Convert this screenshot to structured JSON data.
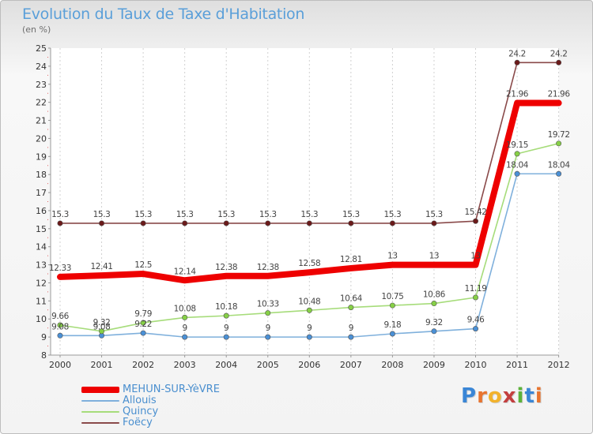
{
  "title": "Evolution du Taux de Taxe d'Habitation",
  "subtitle": "(en %)",
  "logo": {
    "text": "Proxiti",
    "letters": [
      "P",
      "r",
      "o",
      "x",
      "i",
      "t",
      "i"
    ],
    "colors": [
      "#3a86d6",
      "#e8742f",
      "#f2b22c",
      "#c33f3f",
      "#5cb23a",
      "#3a86d6",
      "#e8742f"
    ]
  },
  "chart_data": {
    "type": "line",
    "title": "Evolution du Taux de Taxe d'Habitation",
    "ylabel": "(en %)",
    "xlabel": "",
    "x": [
      "2000",
      "2001",
      "2002",
      "2003",
      "2004",
      "2005",
      "2006",
      "2007",
      "2008",
      "2009",
      "2010",
      "2011",
      "2012"
    ],
    "ylim": [
      8,
      25
    ],
    "yticks": [
      8,
      9,
      10,
      11,
      12,
      13,
      14,
      15,
      16,
      17,
      18,
      19,
      20,
      21,
      22,
      23,
      24,
      25
    ],
    "grid": "dashed vertical lines at each year",
    "legend_position": "bottom-left",
    "series": [
      {
        "name": "MEHUN-SUR-YèVRE",
        "color": "#ee0000",
        "marker_color": "#ee0000",
        "values": [
          12.33,
          12.41,
          12.5,
          12.14,
          12.38,
          12.38,
          12.58,
          12.81,
          13,
          13,
          13,
          21.96,
          21.96
        ],
        "labels": [
          "12.33",
          "12.41",
          "12.5",
          "12.14",
          "12.38",
          "12.38",
          "12.58",
          "12.81",
          "13",
          "13",
          "13",
          "21.96",
          "21.96"
        ]
      },
      {
        "name": "Allouis",
        "color": "#7fb0dc",
        "marker_color": "#4a90d6",
        "values": [
          9.08,
          9.08,
          9.22,
          9,
          9,
          9,
          9,
          9,
          9.18,
          9.32,
          9.46,
          18.04,
          18.04
        ],
        "labels": [
          "9.08",
          "9.08",
          "9.22",
          "9",
          "9",
          "9",
          "9",
          "9",
          "9.18",
          "9.32",
          "9.46",
          "18.04",
          "18.04"
        ]
      },
      {
        "name": "Quincy",
        "color": "#a6dc7a",
        "marker_color": "#86d046",
        "values": [
          9.66,
          9.32,
          9.79,
          10.08,
          10.18,
          10.33,
          10.48,
          10.64,
          10.75,
          10.86,
          11.19,
          19.15,
          19.72
        ],
        "labels": [
          "9.66",
          "9.32",
          "9.79",
          "10.08",
          "10.18",
          "10.33",
          "10.48",
          "10.64",
          "10.75",
          "10.86",
          "11.19",
          "19.15",
          "19.72"
        ]
      },
      {
        "name": "Foëcy",
        "color": "#8a4a4a",
        "marker_color": "#6b1a1a",
        "values": [
          15.3,
          15.3,
          15.3,
          15.3,
          15.3,
          15.3,
          15.3,
          15.3,
          15.3,
          15.3,
          15.42,
          24.2,
          24.2
        ],
        "labels": [
          "15.3",
          "15.3",
          "15.3",
          "15.3",
          "15.3",
          "15.3",
          "15.3",
          "15.3",
          "15.3",
          "15.3",
          "15.42",
          "24.2",
          "24.2"
        ]
      }
    ]
  }
}
